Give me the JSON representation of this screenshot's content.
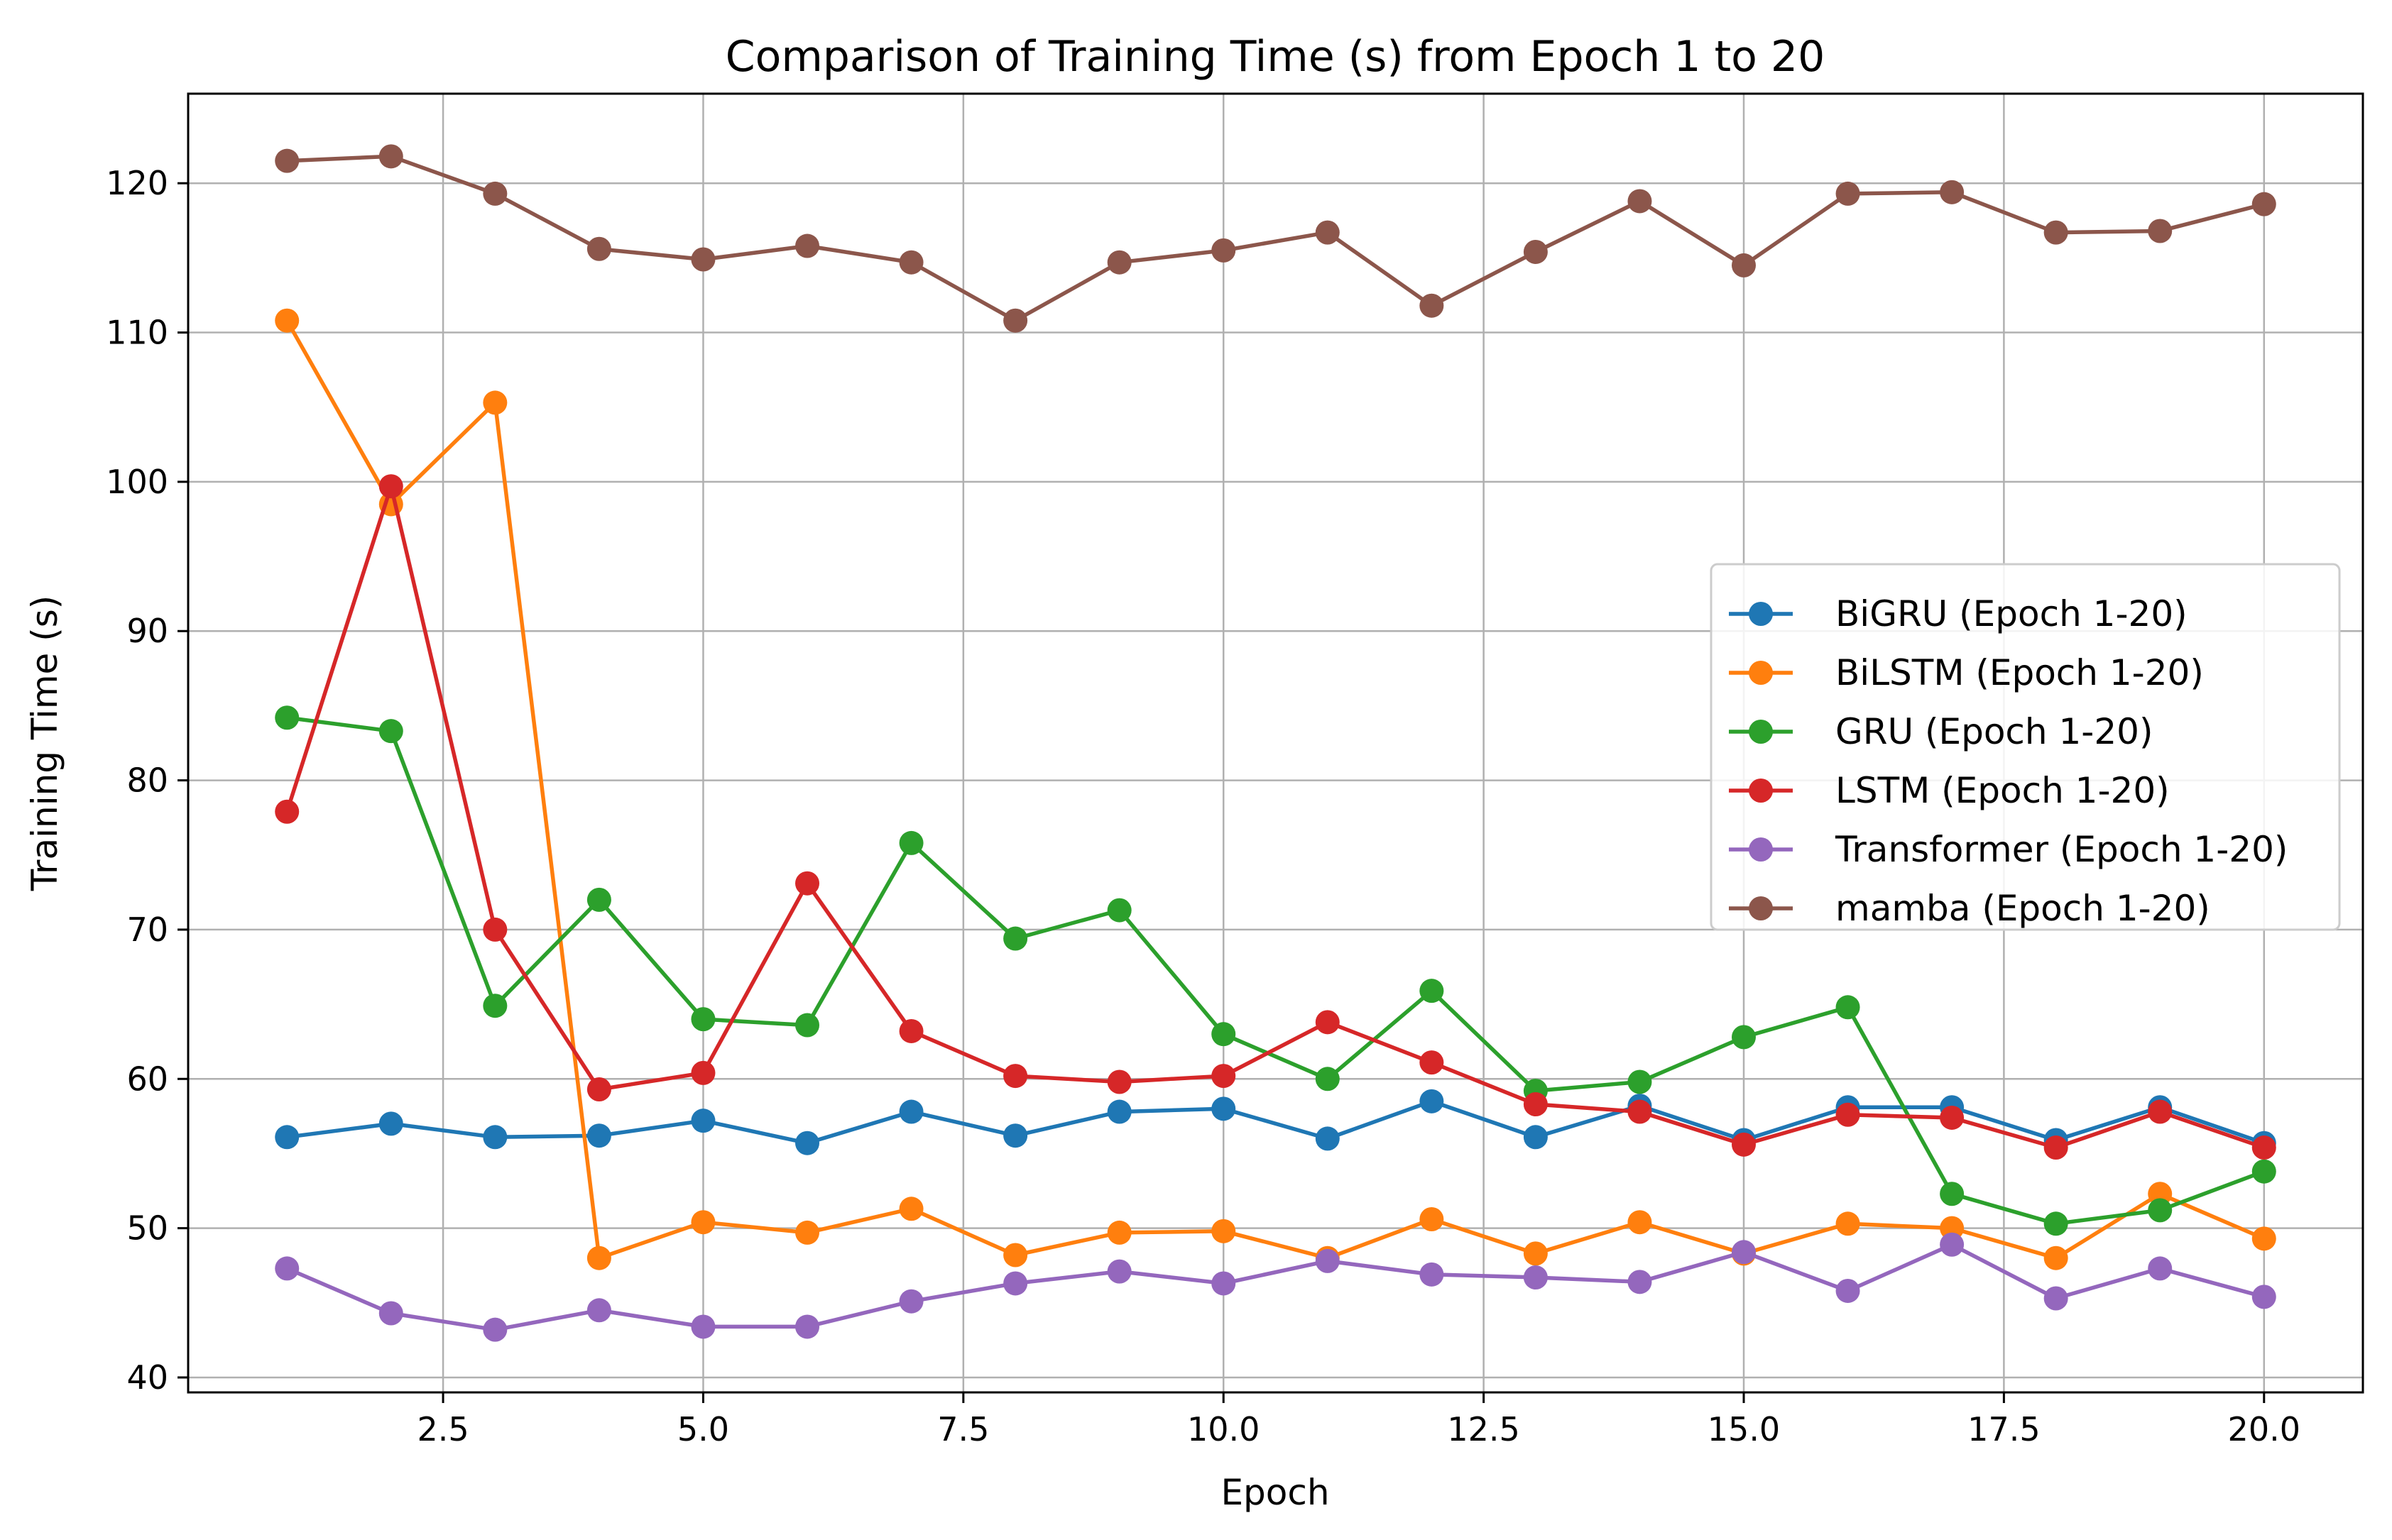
{
  "chart_data": {
    "type": "line",
    "title": "Comparison of Training Time (s) from Epoch 1 to 20",
    "xlabel": "Epoch",
    "ylabel": "Training Time (s)",
    "xlim": [
      0.05,
      20.95
    ],
    "ylim": [
      39,
      126
    ],
    "grid": true,
    "legend_position": "center-right",
    "x_ticks": [
      2.5,
      5.0,
      7.5,
      10.0,
      12.5,
      15.0,
      17.5,
      20.0
    ],
    "x_tick_labels": [
      "2.5",
      "5.0",
      "7.5",
      "10.0",
      "12.5",
      "15.0",
      "17.5",
      "20.0"
    ],
    "y_ticks": [
      40,
      50,
      60,
      70,
      80,
      90,
      100,
      110,
      120
    ],
    "y_tick_labels": [
      "40",
      "50",
      "60",
      "70",
      "80",
      "90",
      "100",
      "110",
      "120"
    ],
    "x": [
      1,
      2,
      3,
      4,
      5,
      6,
      7,
      8,
      9,
      10,
      11,
      12,
      13,
      14,
      15,
      16,
      17,
      18,
      19,
      20
    ],
    "series": [
      {
        "name": "BiGRU (Epoch 1-20)",
        "color": "#1f77b4",
        "values": [
          56.1,
          57.0,
          56.1,
          56.2,
          57.2,
          55.7,
          57.8,
          56.2,
          57.8,
          58.0,
          56.0,
          58.5,
          56.1,
          58.2,
          55.9,
          58.1,
          58.1,
          55.9,
          58.1,
          55.7
        ]
      },
      {
        "name": "BiLSTM (Epoch 1-20)",
        "color": "#ff7f0e",
        "values": [
          110.8,
          98.5,
          105.3,
          48.0,
          50.4,
          49.7,
          51.3,
          48.2,
          49.7,
          49.8,
          48.0,
          50.6,
          48.3,
          50.4,
          48.3,
          50.3,
          50.0,
          48.0,
          52.3,
          49.3
        ]
      },
      {
        "name": "GRU (Epoch 1-20)",
        "color": "#2ca02c",
        "values": [
          84.2,
          83.3,
          64.9,
          72.0,
          64.0,
          63.6,
          75.8,
          69.4,
          71.3,
          63.0,
          60.0,
          65.9,
          59.2,
          59.8,
          62.8,
          64.8,
          52.3,
          50.3,
          51.2,
          53.8
        ]
      },
      {
        "name": "LSTM (Epoch 1-20)",
        "color": "#d62728",
        "values": [
          77.9,
          99.7,
          70.0,
          59.3,
          60.4,
          73.1,
          63.2,
          60.2,
          59.8,
          60.2,
          63.8,
          61.1,
          58.3,
          57.8,
          55.6,
          57.6,
          57.4,
          55.4,
          57.8,
          55.4
        ]
      },
      {
        "name": "Transformer (Epoch 1-20)",
        "color": "#9467bd",
        "values": [
          47.3,
          44.3,
          43.2,
          44.5,
          43.4,
          43.4,
          45.1,
          46.3,
          47.1,
          46.3,
          47.8,
          46.9,
          46.7,
          46.4,
          48.4,
          45.8,
          48.9,
          45.3,
          47.3,
          45.4
        ]
      },
      {
        "name": "mamba (Epoch 1-20)",
        "color": "#8c564b",
        "values": [
          121.5,
          121.8,
          119.3,
          115.6,
          114.9,
          115.8,
          114.7,
          110.8,
          114.7,
          115.5,
          116.7,
          111.8,
          115.4,
          118.8,
          114.5,
          119.3,
          119.4,
          116.7,
          116.8,
          118.6
        ]
      }
    ]
  }
}
